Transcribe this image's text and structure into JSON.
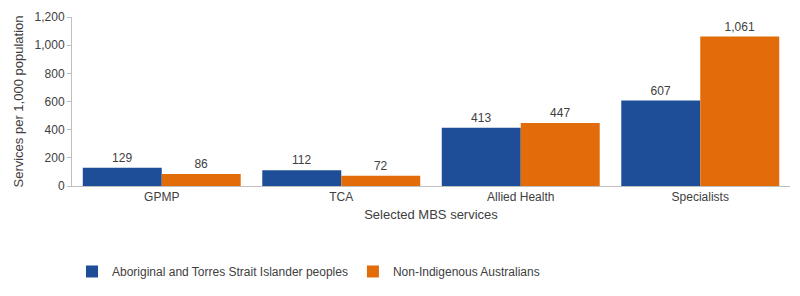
{
  "chart_data": {
    "type": "bar",
    "xlabel": "Selected MBS services",
    "ylabel": "Services per 1,000 population",
    "categories": [
      "GPMP",
      "TCA",
      "Allied Health",
      "Specialists"
    ],
    "series": [
      {
        "name": "Aboriginal and Torres Strait Islander peoples",
        "color": "#1f4e99",
        "values": [
          129,
          112,
          413,
          607
        ]
      },
      {
        "name": "Non-Indigenous Australians",
        "color": "#e36c0a",
        "values": [
          86,
          72,
          447,
          1061
        ],
        "value_labels": [
          "86",
          "72",
          "447",
          "1,061"
        ]
      }
    ],
    "ylim": [
      0,
      1200
    ],
    "yticks": [
      0,
      200,
      400,
      600,
      800,
      {
        "value": 1000,
        "label": "1,000"
      },
      {
        "value": 1200,
        "label": "1,200"
      }
    ],
    "grid": false,
    "legend": "bottom left",
    "data_labels": true
  }
}
